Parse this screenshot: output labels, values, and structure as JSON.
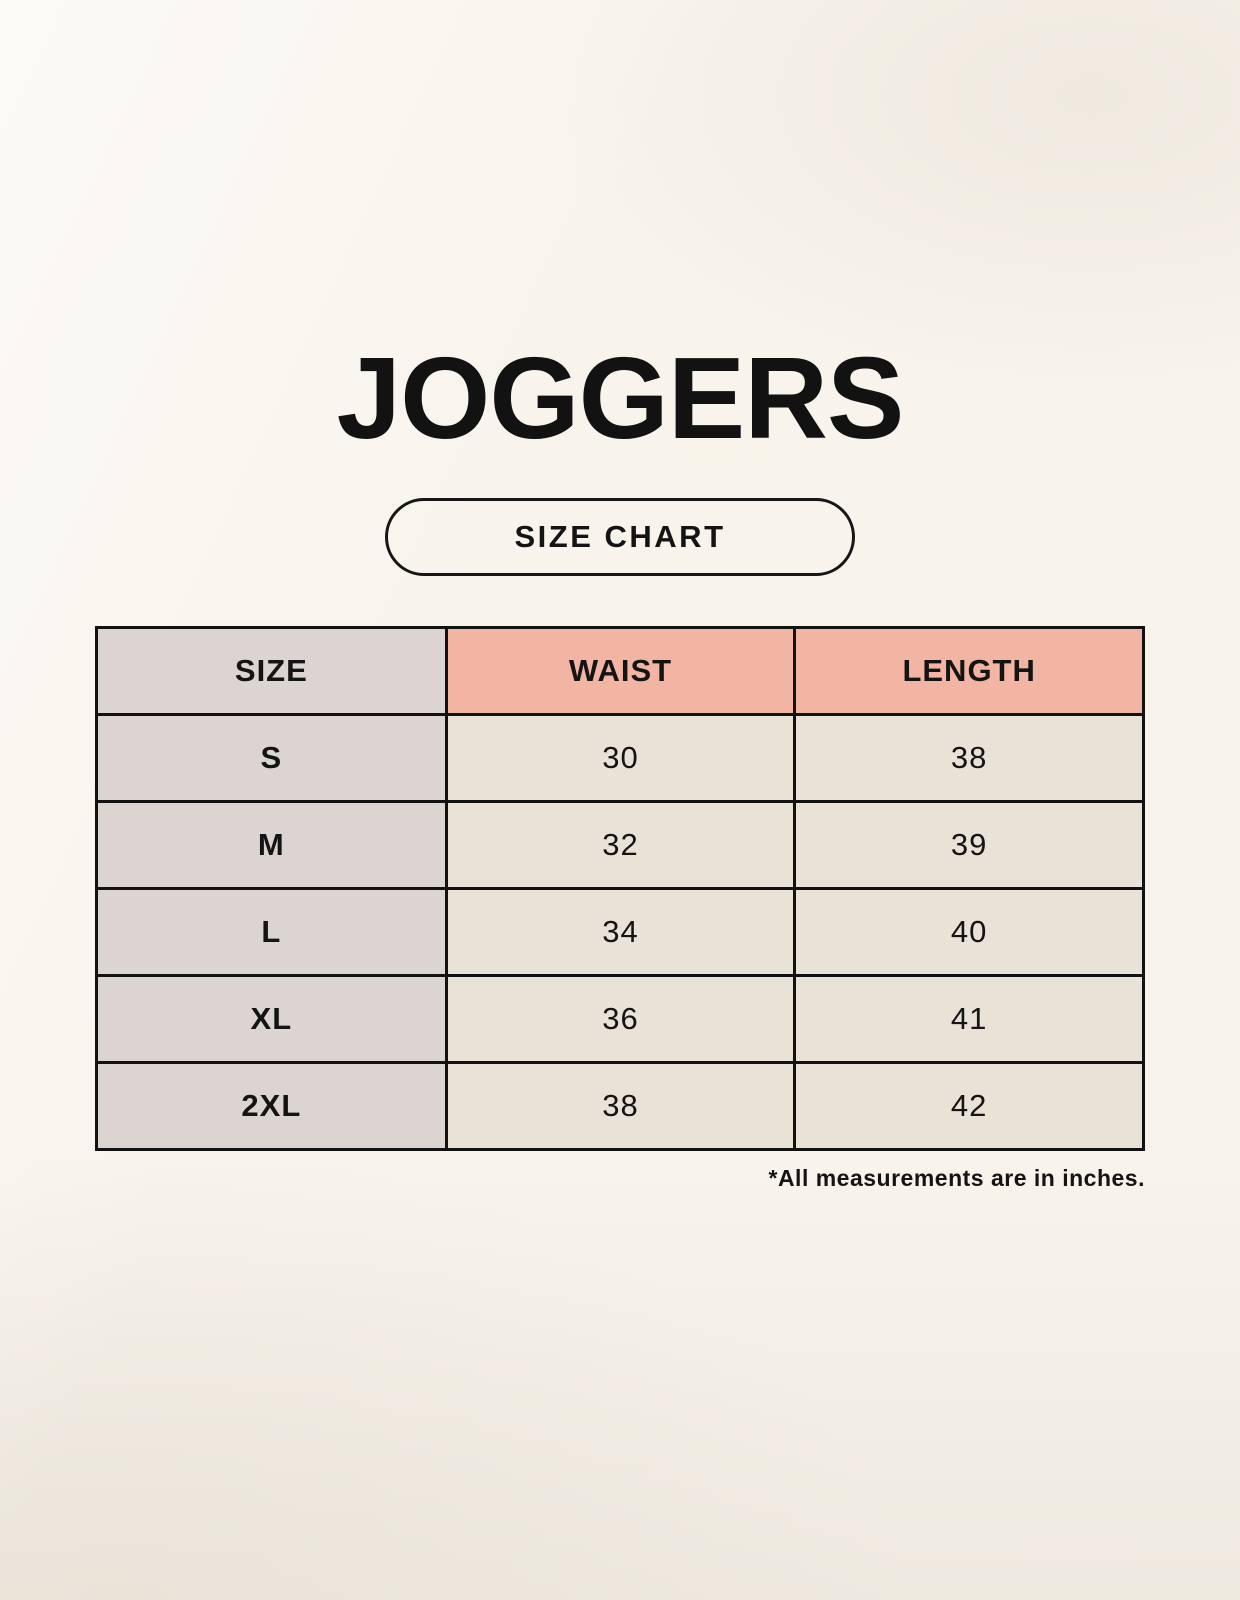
{
  "page": {
    "title": "JOGGERS",
    "badge_label": "SIZE CHART",
    "footnote": "*All measurements are in inches."
  },
  "chart_data": {
    "type": "table",
    "title": "JOGGERS",
    "subtitle": "SIZE CHART",
    "columns": [
      "SIZE",
      "WAIST",
      "LENGTH"
    ],
    "rows": [
      {
        "size": "S",
        "waist": "30",
        "length": "38"
      },
      {
        "size": "M",
        "waist": "32",
        "length": "39"
      },
      {
        "size": "L",
        "waist": "34",
        "length": "40"
      },
      {
        "size": "XL",
        "waist": "36",
        "length": "41"
      },
      {
        "size": "2XL",
        "waist": "38",
        "length": "42"
      }
    ],
    "units_note": "*All measurements are in inches."
  },
  "colors": {
    "background": "#f8f4ec",
    "size_column_bg": "#dbd4d0",
    "measurement_header_bg": "#f2b5a4",
    "value_cell_bg": "#e9e2d7",
    "border": "#121212",
    "text": "#141414"
  }
}
